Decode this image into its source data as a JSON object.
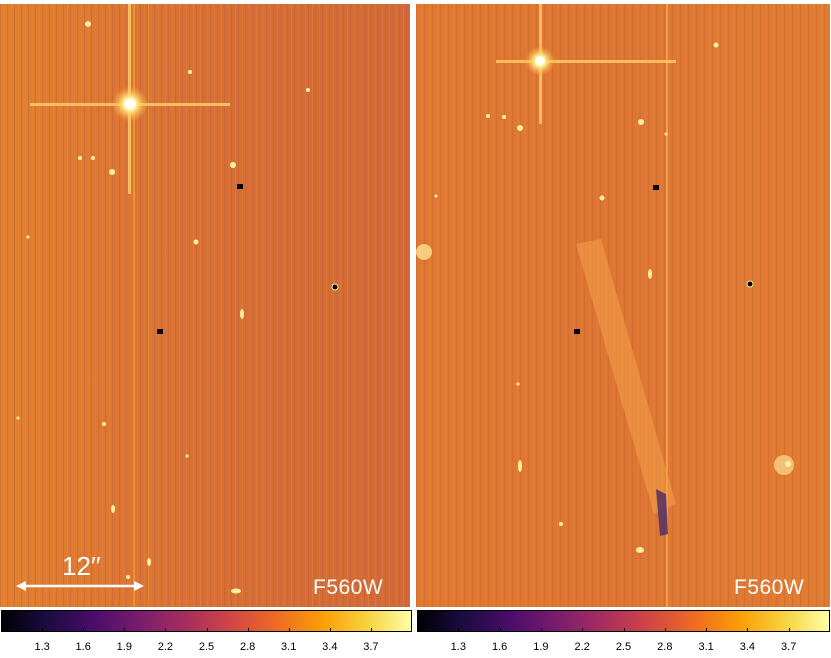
{
  "panels": [
    {
      "filter": "F560W",
      "scale_bar": "12′′"
    },
    {
      "filter": "F560W"
    }
  ],
  "colorbar": {
    "colormap": "inferno",
    "ticks": [
      "1.3",
      "1.6",
      "1.9",
      "2.2",
      "2.5",
      "2.8",
      "3.1",
      "3.4",
      "3.7"
    ]
  },
  "colors": {
    "background": "#e07a2e",
    "source": "#fff4b0",
    "scale_bar": "#ffffff"
  }
}
